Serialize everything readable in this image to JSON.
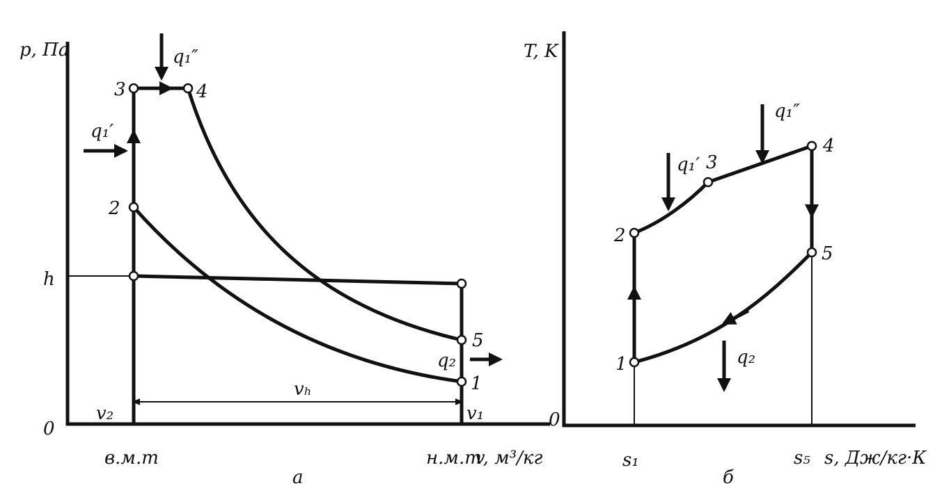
{
  "diagram_a": {
    "y_axis_label": "p, Па",
    "origin": "0",
    "h_label": "h",
    "point_3": "3",
    "point_4": "4",
    "point_2": "2",
    "point_5": "5",
    "point_1": "1",
    "q1_double_prime": "q₁″",
    "q1_prime": "q₁′",
    "q2": "q₂",
    "vh": "vₕ",
    "v2": "v₂",
    "v1": "v₁",
    "tdc": "в.м.т",
    "bdc": "н.м.т",
    "x_axis_label": "v, м³/кг",
    "caption": "а"
  },
  "diagram_b": {
    "y_axis_label": "T, K",
    "origin": "0",
    "point_1": "1",
    "point_2": "2",
    "point_3": "3",
    "point_4": "4",
    "point_5": "5",
    "q1_prime": "q₁′",
    "q1_double_prime": "q₁″",
    "q2": "q₂",
    "s1": "s₁",
    "s5": "s₅",
    "x_axis_label": "s, Дж/кг·К",
    "caption": "б"
  }
}
